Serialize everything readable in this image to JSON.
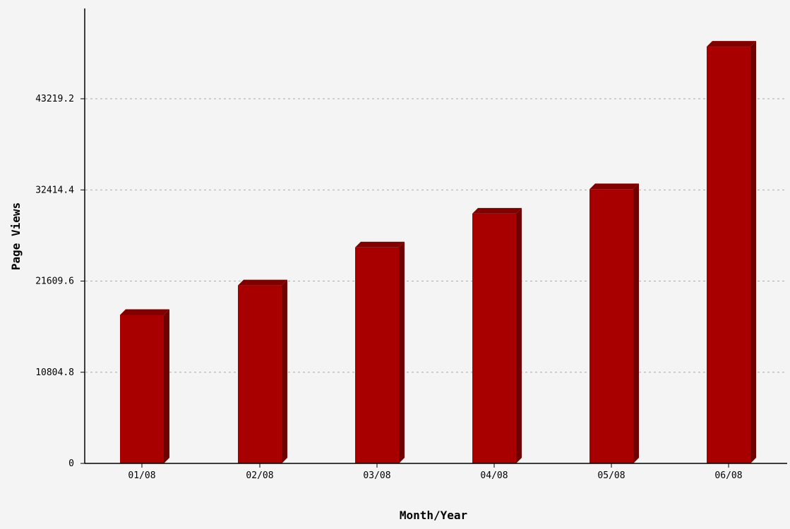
{
  "chart_data": {
    "type": "bar",
    "title": "",
    "xlabel": "Month/Year",
    "ylabel": "Page Views",
    "categories": [
      "01/08",
      "02/08",
      "03/08",
      "04/08",
      "05/08",
      "06/08"
    ],
    "values": [
      17600,
      21100,
      25600,
      29600,
      32500,
      49400
    ],
    "ylim": [
      0,
      54024
    ],
    "yticks": [
      0,
      10804.8,
      21609.6,
      32414.4,
      43219.2
    ],
    "ytick_labels": [
      "0",
      "10804.8",
      "21609.6",
      "32414.4",
      "43219.2"
    ],
    "grid": true,
    "legend": "none",
    "colors": {
      "bar_front": "#a80000",
      "bar_side": "#6e0000",
      "bar_top": "#800000",
      "gridline": "#aaaaaa",
      "axis": "#000000",
      "background": "#f4f4f4"
    }
  }
}
